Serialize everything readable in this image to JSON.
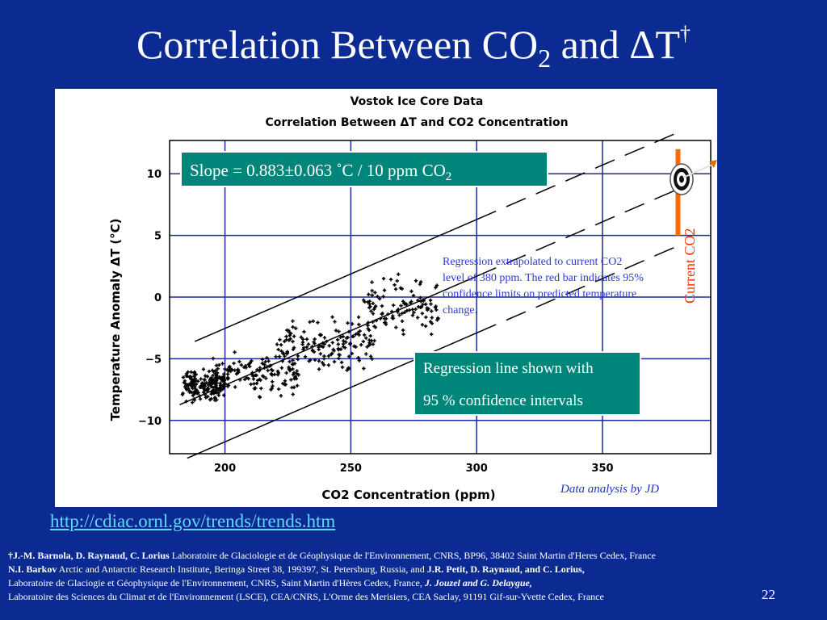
{
  "slide": {
    "title_text": "Correlation Between CO",
    "title_sub": "2",
    "title_and": " and ΔT",
    "title_dagger": "†",
    "page_number": "22"
  },
  "annotations": {
    "slope_text": "Slope = 0.883±0.063 ˚C / 10 ppm CO",
    "slope_sub": "2",
    "regression_line1": "Regression line shown with",
    "regression_line2": "95 % confidence intervals",
    "extrapolation_note": "Regression extrapolated to current CO2 level of 380 ppm. The red bar indicates 95% confidence limits on predicted temperature change.",
    "analysis_credit": "Data analysis by JD",
    "current_co2_label": "Current CO2",
    "source_link": "http://cdiac.ornl.gov/trends/trends.htm"
  },
  "references": {
    "r1_bold": "†J.-M. Barnola, D. Raynaud, C. Lorius",
    "r1_text": " Laboratoire de Glaciologie et de Géophysique de l'Environnement, CNRS, BP96, 38402 Saint Martin d'Heres Cedex, France",
    "r2_bold1": "N.I. Barkov",
    "r2_text": " Arctic and Antarctic Research Institute, Beringa Street 38, 199397, St. Petersburg, Russia, and ",
    "r2_bold2": "J.R. Petit, D. Raynaud, and C. Lorius,",
    "r3_text": "Laboratoire de Glaciogie et Géophysique de l'Environnement, CNRS, Saint Martin d'Hères Cedex, France, ",
    "r3_bold": "J. Jouzel and G. Delaygue,",
    "r4_text": "Laboratoire des Sciences du Climat et de l'Environnement (LSCE), CEA/CNRS, L'Orme des Merisiers, CEA Saclay, 91191 Gif-sur-Yvette Cedex, France"
  },
  "colors": {
    "background": "#0b2b92",
    "teal_box": "#00857a",
    "gridline": "#1a2a9a",
    "current_bar": "#ff6a00",
    "link": "#5fd8ff",
    "note_blue": "#2e36d8",
    "label_red": "#ff3300"
  },
  "icons": [
    "target-bullseye-icon",
    "arrow-icon"
  ],
  "chart_data": {
    "type": "scatter",
    "title": "Vostok Ice Core Data",
    "subtitle": "Correlation Between ΔT and CO2 Concentration",
    "xlabel": "CO2 Concentration (ppm)",
    "ylabel": "Temperature Anomaly ΔT (°C)",
    "xlim": [
      178,
      393
    ],
    "ylim": [
      -12.7,
      12.7
    ],
    "x_ticks": [
      200,
      250,
      300,
      350
    ],
    "y_ticks": [
      -10,
      -5,
      0,
      5,
      10
    ],
    "x_tick_labels": [
      "200",
      "250",
      "300",
      "350"
    ],
    "y_tick_labels": [
      "−10",
      "−5",
      "0",
      "5",
      "10"
    ],
    "grid": true,
    "regression": {
      "slope_per_ppm": 0.0883,
      "intercept": -24.8
    },
    "confidence_offset": 4.6,
    "extrapolation_to_ppm": 380,
    "current_co2_bar": {
      "x": 380,
      "y_low": 5,
      "y_high": 12
    },
    "point_clusters": [
      {
        "x_min": 183,
        "x_max": 200,
        "y_center": -7.2,
        "y_spread": 1.2,
        "count": 170
      },
      {
        "x_min": 195,
        "x_max": 230,
        "y_center": -6.2,
        "y_spread": 1.6,
        "count": 140
      },
      {
        "x_min": 220,
        "x_max": 260,
        "y_center": -3.8,
        "y_spread": 2.0,
        "count": 150
      },
      {
        "x_min": 255,
        "x_max": 285,
        "y_center": -0.8,
        "y_spread": 2.2,
        "count": 110
      }
    ]
  }
}
